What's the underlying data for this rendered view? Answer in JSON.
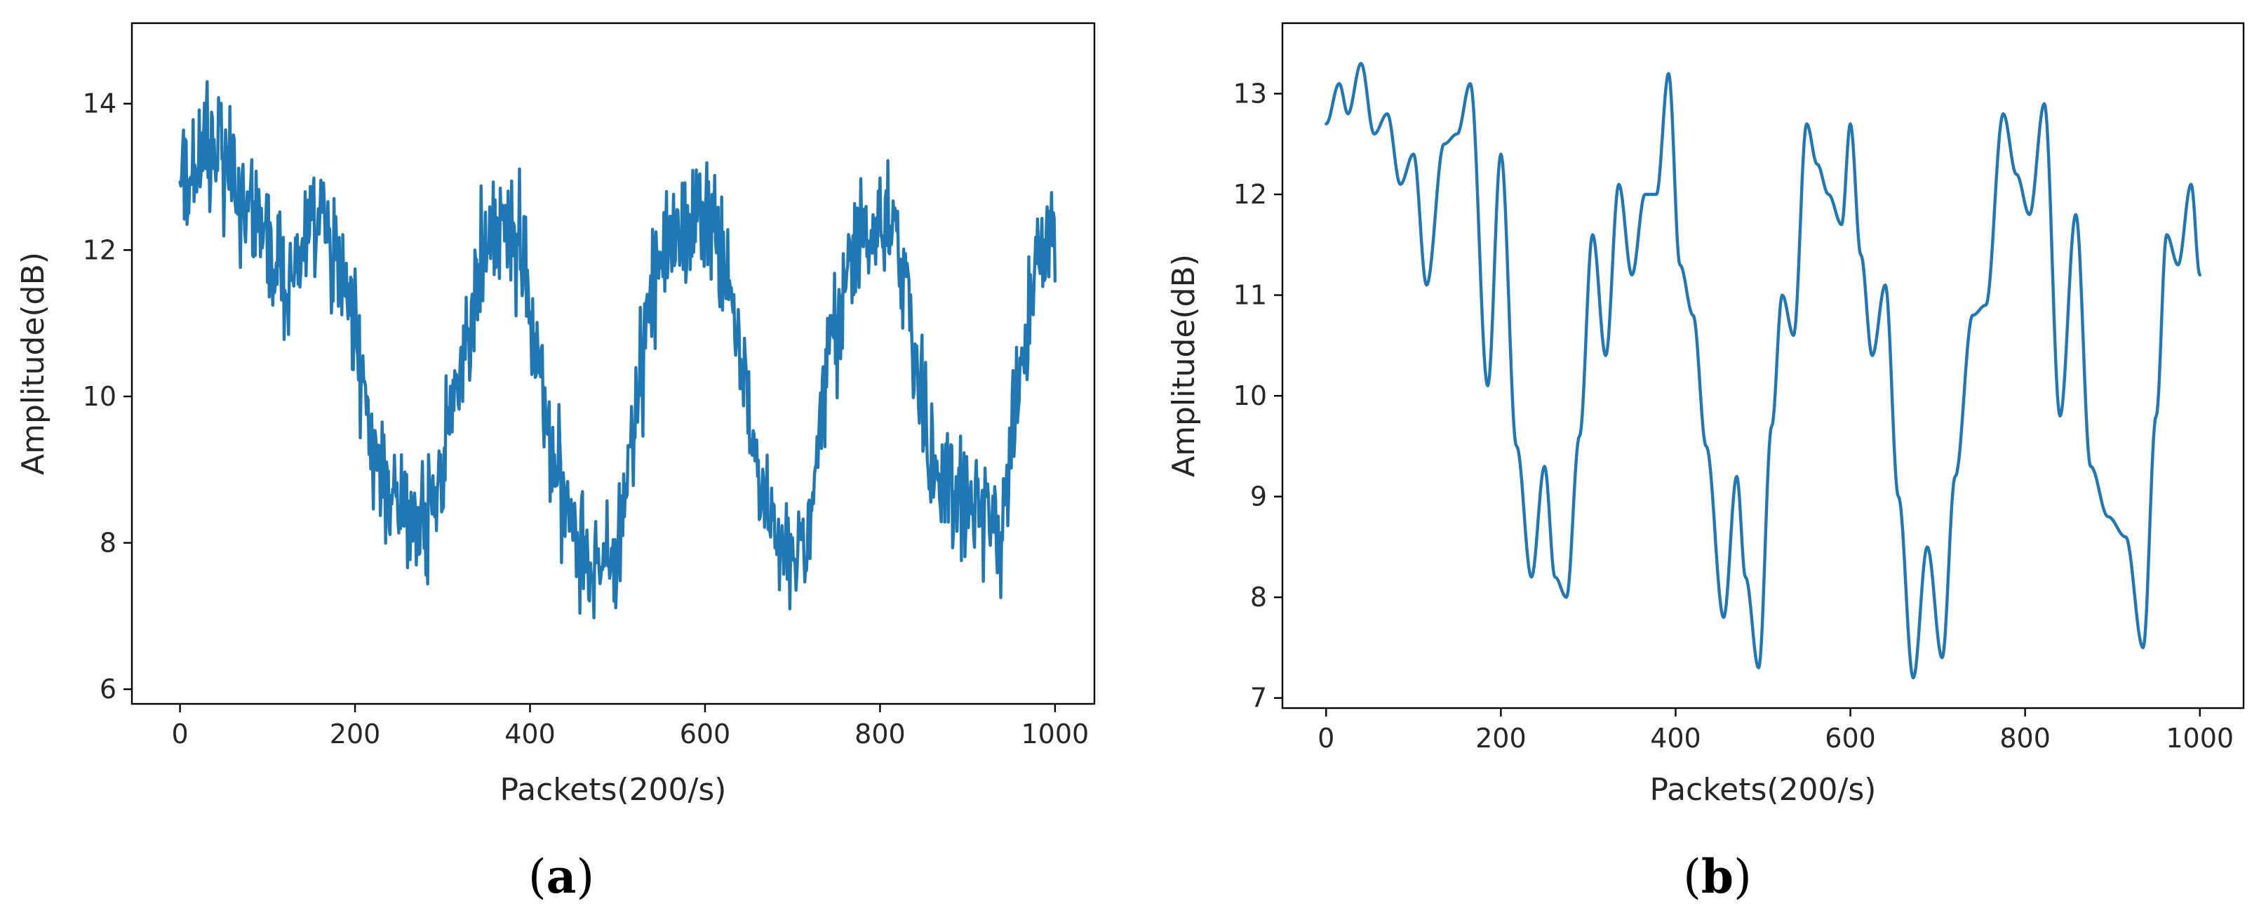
{
  "chart_data": [
    {
      "type": "line",
      "caption": {
        "open": "(",
        "letter": "a",
        "close": ")"
      },
      "xlabel": "Packets(200/s)",
      "ylabel": "Amplitude(dB)",
      "xlim": [
        -55,
        1045
      ],
      "ylim": [
        5.8,
        15.1
      ],
      "xticks": [
        0,
        200,
        400,
        600,
        800,
        1000
      ],
      "yticks": [
        6,
        8,
        10,
        12,
        14
      ],
      "grid": false,
      "color": "#1f77b4",
      "series": [
        {
          "x": [
            0,
            20,
            40,
            60,
            80,
            100,
            120,
            140,
            160,
            180,
            200,
            220,
            240,
            260,
            280,
            300,
            320,
            340,
            360,
            380,
            400,
            420,
            440,
            460,
            480,
            500,
            520,
            540,
            560,
            580,
            600,
            620,
            640,
            660,
            680,
            700,
            720,
            740,
            760,
            780,
            800,
            820,
            840,
            860,
            880,
            900,
            920,
            940,
            960,
            980,
            1000
          ],
          "y": [
            12.7,
            13.2,
            13.4,
            13.0,
            12.6,
            12.0,
            11.5,
            12.0,
            12.4,
            11.8,
            10.9,
            9.3,
            8.6,
            8.4,
            8.2,
            9.0,
            10.5,
            11.6,
            12.2,
            12.4,
            11.4,
            9.6,
            8.6,
            8.0,
            7.7,
            7.6,
            9.8,
            11.6,
            12.3,
            12.1,
            12.6,
            11.8,
            10.6,
            9.0,
            8.0,
            7.8,
            8.5,
            10.3,
            11.6,
            12.1,
            12.4,
            12.0,
            10.6,
            9.0,
            8.7,
            8.6,
            8.4,
            8.2,
            10.2,
            11.8,
            12.2
          ],
          "noise_amplitude": 0.85,
          "samples": 1000
        }
      ]
    },
    {
      "type": "line",
      "caption": {
        "open": "(",
        "letter": "b",
        "close": ")"
      },
      "xlabel": "Packets(200/s)",
      "ylabel": "Amplitude(dB)",
      "xlim": [
        -50,
        1050
      ],
      "ylim": [
        6.9,
        13.7
      ],
      "xticks": [
        0,
        200,
        400,
        600,
        800,
        1000
      ],
      "yticks": [
        7,
        8,
        9,
        10,
        11,
        12,
        13
      ],
      "grid": false,
      "color": "#1f77b4",
      "series": [
        {
          "x": [
            0,
            15,
            25,
            40,
            55,
            70,
            85,
            100,
            115,
            135,
            150,
            165,
            185,
            200,
            218,
            235,
            250,
            262,
            275,
            290,
            305,
            320,
            335,
            350,
            365,
            378,
            392,
            405,
            420,
            435,
            455,
            470,
            480,
            495,
            510,
            522,
            535,
            550,
            562,
            575,
            590,
            600,
            612,
            625,
            640,
            655,
            672,
            688,
            705,
            720,
            740,
            755,
            775,
            790,
            805,
            822,
            840,
            858,
            875,
            895,
            915,
            935,
            950,
            962,
            975,
            990,
            1000
          ],
          "y": [
            12.7,
            13.1,
            12.8,
            13.3,
            12.6,
            12.8,
            12.1,
            12.4,
            11.1,
            12.5,
            12.6,
            13.1,
            10.1,
            12.4,
            9.5,
            8.2,
            9.3,
            8.2,
            8.0,
            9.6,
            11.6,
            10.4,
            12.1,
            11.2,
            12.0,
            12.0,
            13.2,
            11.3,
            10.8,
            9.5,
            7.8,
            9.2,
            8.2,
            7.3,
            9.7,
            11.0,
            10.6,
            12.7,
            12.3,
            12.0,
            11.7,
            12.7,
            11.4,
            10.4,
            11.1,
            9.0,
            7.2,
            8.5,
            7.4,
            9.2,
            10.8,
            10.9,
            12.8,
            12.2,
            11.8,
            12.9,
            9.8,
            11.8,
            9.3,
            8.8,
            8.6,
            7.5,
            9.8,
            11.6,
            11.3,
            12.1,
            11.2
          ],
          "samples": 1000
        }
      ]
    }
  ]
}
